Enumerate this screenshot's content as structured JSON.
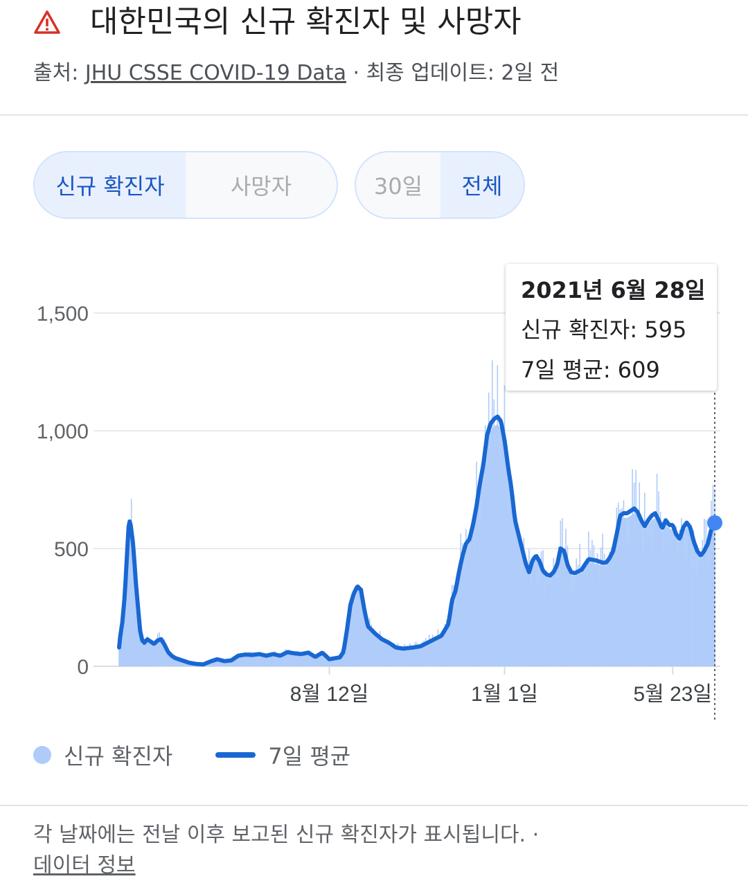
{
  "header": {
    "title": "대한민국의 신규 확진자 및 사망자",
    "source_prefix": "출처:",
    "source_link": "JHU CSSE COVID-19 Data",
    "source_suffix": " · 최종 업데이트: 2일 전"
  },
  "metric_toggle": {
    "options": [
      "신규 확진자",
      "사망자"
    ],
    "selected": "신규 확진자"
  },
  "range_toggle": {
    "options": [
      "30일",
      "전체"
    ],
    "selected": "전체"
  },
  "tooltip": {
    "date": "2021년 6월 28일",
    "cases_line": "신규 확진자: 595",
    "avg_line": "7일 평균: 609"
  },
  "legend": {
    "bars_label": "신규 확진자",
    "line_label": "7일 평균"
  },
  "footnote": {
    "text": "각 날짜에는 전날 이후 보고된 신규 확진자가 표시됩니다.  ·",
    "link": "데이터 정보"
  },
  "colors": {
    "bars": "#aecbfa",
    "line": "#1967d2",
    "accent": "#1a56c4",
    "warning": "#d93025"
  },
  "chart_data": {
    "type": "bar",
    "series": [
      {
        "name": "신규 확진자",
        "type": "bar"
      },
      {
        "name": "7일 평균",
        "type": "line"
      }
    ],
    "ylim": [
      0,
      1500
    ],
    "yticks": [
      0,
      500,
      1000,
      1500
    ],
    "ytick_labels": [
      "0",
      "500",
      "1,000",
      "1,500"
    ],
    "xtick_labels": [
      "8월 12일",
      "1월 1일",
      "5월 23일"
    ],
    "grid": true,
    "avg_points": [
      [
        0,
        80
      ],
      [
        2,
        140
      ],
      [
        4,
        170
      ],
      [
        8,
        300
      ],
      [
        14,
        620
      ],
      [
        16,
        610
      ],
      [
        20,
        520
      ],
      [
        24,
        350
      ],
      [
        27,
        250
      ],
      [
        30,
        150
      ],
      [
        33,
        110
      ],
      [
        36,
        100
      ],
      [
        40,
        115
      ],
      [
        45,
        105
      ],
      [
        50,
        95
      ],
      [
        55,
        110
      ],
      [
        60,
        115
      ],
      [
        65,
        90
      ],
      [
        70,
        60
      ],
      [
        75,
        45
      ],
      [
        80,
        35
      ],
      [
        90,
        25
      ],
      [
        100,
        15
      ],
      [
        110,
        10
      ],
      [
        120,
        8
      ],
      [
        130,
        20
      ],
      [
        140,
        30
      ],
      [
        150,
        22
      ],
      [
        160,
        25
      ],
      [
        170,
        45
      ],
      [
        180,
        50
      ],
      [
        190,
        48
      ],
      [
        200,
        52
      ],
      [
        210,
        45
      ],
      [
        220,
        52
      ],
      [
        230,
        45
      ],
      [
        240,
        60
      ],
      [
        250,
        55
      ],
      [
        260,
        52
      ],
      [
        270,
        58
      ],
      [
        280,
        40
      ],
      [
        290,
        58
      ],
      [
        300,
        30
      ],
      [
        315,
        38
      ],
      [
        320,
        60
      ],
      [
        325,
        150
      ],
      [
        330,
        260
      ],
      [
        335,
        310
      ],
      [
        340,
        340
      ],
      [
        345,
        325
      ],
      [
        350,
        240
      ],
      [
        355,
        170
      ],
      [
        365,
        140
      ],
      [
        375,
        115
      ],
      [
        385,
        100
      ],
      [
        395,
        80
      ],
      [
        405,
        75
      ],
      [
        420,
        80
      ],
      [
        430,
        85
      ],
      [
        440,
        100
      ],
      [
        450,
        115
      ],
      [
        460,
        130
      ],
      [
        470,
        180
      ],
      [
        475,
        280
      ],
      [
        480,
        320
      ],
      [
        485,
        400
      ],
      [
        490,
        470
      ],
      [
        495,
        520
      ],
      [
        500,
        540
      ],
      [
        505,
        600
      ],
      [
        510,
        680
      ],
      [
        515,
        780
      ],
      [
        520,
        860
      ],
      [
        525,
        980
      ],
      [
        530,
        1030
      ],
      [
        535,
        1050
      ],
      [
        540,
        1060
      ],
      [
        545,
        1040
      ],
      [
        550,
        960
      ],
      [
        555,
        850
      ],
      [
        560,
        750
      ],
      [
        565,
        620
      ],
      [
        570,
        560
      ],
      [
        575,
        500
      ],
      [
        580,
        440
      ],
      [
        585,
        400
      ],
      [
        590,
        450
      ],
      [
        595,
        470
      ],
      [
        600,
        445
      ],
      [
        605,
        405
      ],
      [
        610,
        390
      ],
      [
        615,
        385
      ],
      [
        620,
        400
      ],
      [
        625,
        430
      ],
      [
        630,
        500
      ],
      [
        635,
        490
      ],
      [
        640,
        430
      ],
      [
        645,
        400
      ],
      [
        650,
        395
      ],
      [
        660,
        410
      ],
      [
        670,
        455
      ],
      [
        680,
        450
      ],
      [
        690,
        440
      ],
      [
        695,
        440
      ],
      [
        700,
        460
      ],
      [
        705,
        490
      ],
      [
        710,
        560
      ],
      [
        715,
        640
      ],
      [
        720,
        650
      ],
      [
        725,
        650
      ],
      [
        730,
        660
      ],
      [
        735,
        670
      ],
      [
        740,
        655
      ],
      [
        745,
        620
      ],
      [
        750,
        595
      ],
      [
        755,
        620
      ],
      [
        760,
        640
      ],
      [
        765,
        650
      ],
      [
        770,
        620
      ],
      [
        775,
        585
      ],
      [
        780,
        620
      ],
      [
        785,
        600
      ],
      [
        790,
        600
      ],
      [
        795,
        560
      ],
      [
        800,
        540
      ],
      [
        805,
        590
      ],
      [
        810,
        610
      ],
      [
        815,
        590
      ],
      [
        820,
        530
      ],
      [
        825,
        490
      ],
      [
        830,
        470
      ],
      [
        835,
        490
      ],
      [
        840,
        520
      ],
      [
        845,
        580
      ],
      [
        850,
        609
      ]
    ],
    "x_domain": [
      0,
      850
    ]
  }
}
